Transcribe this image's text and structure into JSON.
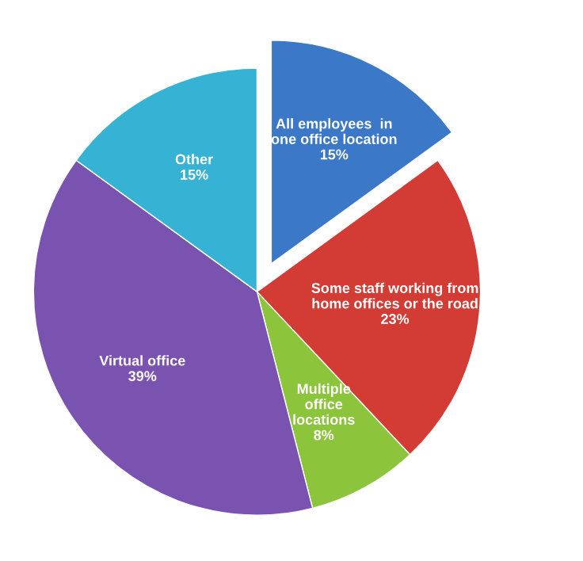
{
  "chart_data": {
    "type": "pie",
    "categories": [
      "All employees  in\none office location",
      "Some staff working from\nhome offices or the road",
      "Multiple\noffice\nlocations",
      "Virtual office",
      "Other"
    ],
    "values": [
      15,
      23,
      8,
      39,
      15
    ],
    "value_labels": [
      "15%",
      "23%",
      "8%",
      "39%",
      "15%"
    ],
    "colors": [
      "#3b78c8",
      "#d23c34",
      "#8cc43c",
      "#7a52b0",
      "#36b2d4"
    ],
    "legend": false
  }
}
